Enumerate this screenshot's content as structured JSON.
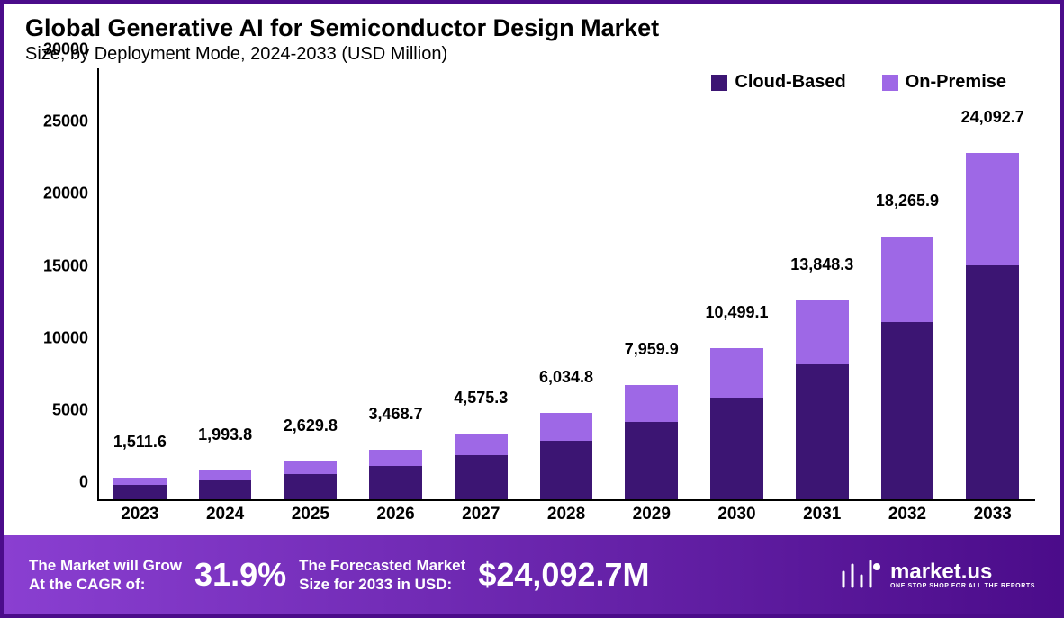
{
  "header": {
    "title": "Global Generative AI for Semiconductor Design Market",
    "subtitle": "Size, by Deployment Mode, 2024-2033 (USD Million)"
  },
  "chart": {
    "type": "stacked-bar",
    "background_color": "#ffffff",
    "border_color": "#4b0c8a",
    "axis_color": "#000000",
    "label_color": "#000000",
    "label_fontsize": 18,
    "total_label_fontsize": 18,
    "ylim": [
      0,
      30000
    ],
    "ytick_step": 5000,
    "yticks": [
      "0",
      "5000",
      "10000",
      "15000",
      "20000",
      "25000",
      "30000"
    ],
    "categories": [
      "2023",
      "2024",
      "2025",
      "2026",
      "2027",
      "2028",
      "2029",
      "2030",
      "2031",
      "2032",
      "2033"
    ],
    "series": [
      {
        "name": "Cloud-Based",
        "color": "#3c1573"
      },
      {
        "name": "On-Premise",
        "color": "#9e68e6"
      }
    ],
    "bar_width_ratio": 0.62,
    "totals_labels": [
      "1,511.6",
      "1,993.8",
      "2,629.8",
      "3,468.7",
      "4,575.3",
      "6,034.8",
      "7,959.9",
      "10,499.1",
      "13,848.3",
      "18,265.9",
      "24,092.7"
    ],
    "totals": [
      1511.6,
      1993.8,
      2629.8,
      3468.7,
      4575.3,
      6034.8,
      7959.9,
      10499.1,
      13848.3,
      18265.9,
      24092.7
    ],
    "stacks": [
      [
        1020,
        491.6
      ],
      [
        1345,
        648.8
      ],
      [
        1775,
        854.8
      ],
      [
        2345,
        1123.7
      ],
      [
        3095,
        1480.3
      ],
      [
        4080,
        1954.8
      ],
      [
        5380,
        2579.9
      ],
      [
        7100,
        3399.1
      ],
      [
        9365,
        4483.3
      ],
      [
        12350,
        5915.9
      ],
      [
        16290,
        7802.7
      ]
    ]
  },
  "legend": {
    "items": [
      {
        "label": "Cloud-Based",
        "color": "#3c1573"
      },
      {
        "label": "On-Premise",
        "color": "#9e68e6"
      }
    ]
  },
  "footer": {
    "gradient_from": "#8a3fd1",
    "gradient_to": "#4b0c8a",
    "text_color": "#ffffff",
    "cagr_label": "The Market will Grow\nAt the CAGR of:",
    "cagr_value": "31.9%",
    "forecast_label": "The Forecasted Market\nSize for 2033 in USD:",
    "forecast_value": "$24,092.7M",
    "brand_name": "market.us",
    "brand_tagline": "ONE STOP SHOP FOR ALL THE REPORTS"
  }
}
